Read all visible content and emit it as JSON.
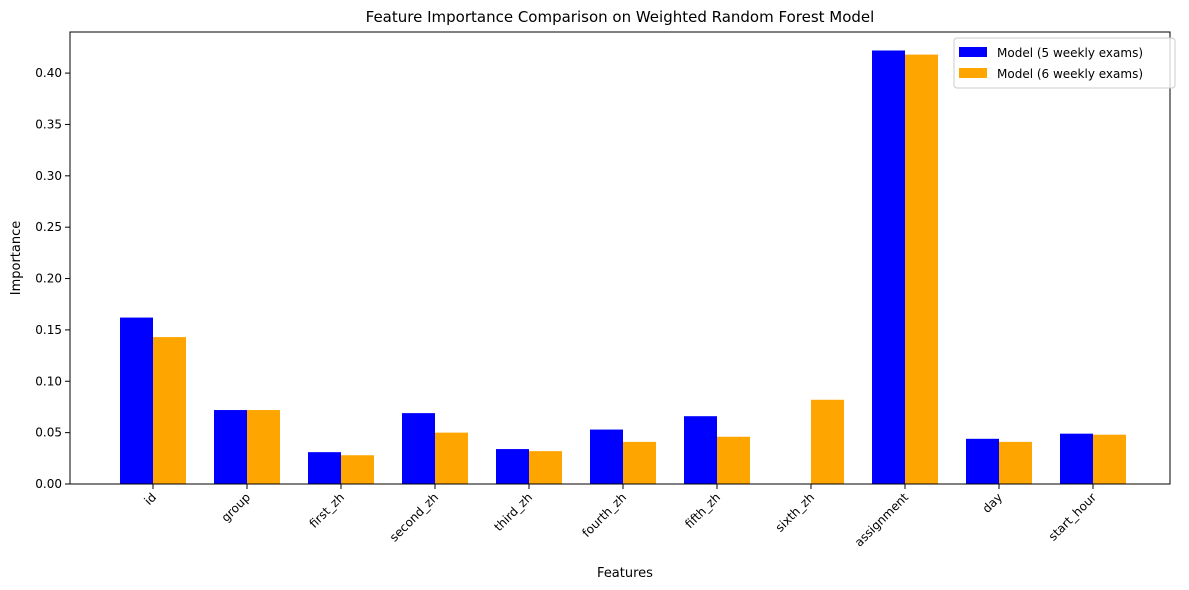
{
  "chart_data": {
    "type": "bar",
    "title": "Feature Importance Comparison on Weighted Random Forest Model",
    "xlabel": "Features",
    "ylabel": "Importance",
    "categories": [
      "id",
      "group",
      "first_zh",
      "second_zh",
      "third_zh",
      "fourth_zh",
      "fifth_zh",
      "sixth_zh",
      "assignment",
      "day",
      "start_hour"
    ],
    "series": [
      {
        "name": "Model (5 weekly exams)",
        "color": "#0000ff",
        "values": [
          0.162,
          0.072,
          0.031,
          0.069,
          0.034,
          0.053,
          0.066,
          0.0,
          0.422,
          0.044,
          0.049
        ]
      },
      {
        "name": "Model (6 weekly exams)",
        "color": "#ffa500",
        "values": [
          0.143,
          0.072,
          0.028,
          0.05,
          0.032,
          0.041,
          0.046,
          0.082,
          0.418,
          0.041,
          0.048
        ]
      }
    ],
    "ylim": [
      0,
      0.44
    ],
    "yticks": [
      "0.00",
      "0.05",
      "0.10",
      "0.15",
      "0.20",
      "0.25",
      "0.30",
      "0.35",
      "0.40"
    ],
    "grid": false,
    "legend": "top-right"
  }
}
